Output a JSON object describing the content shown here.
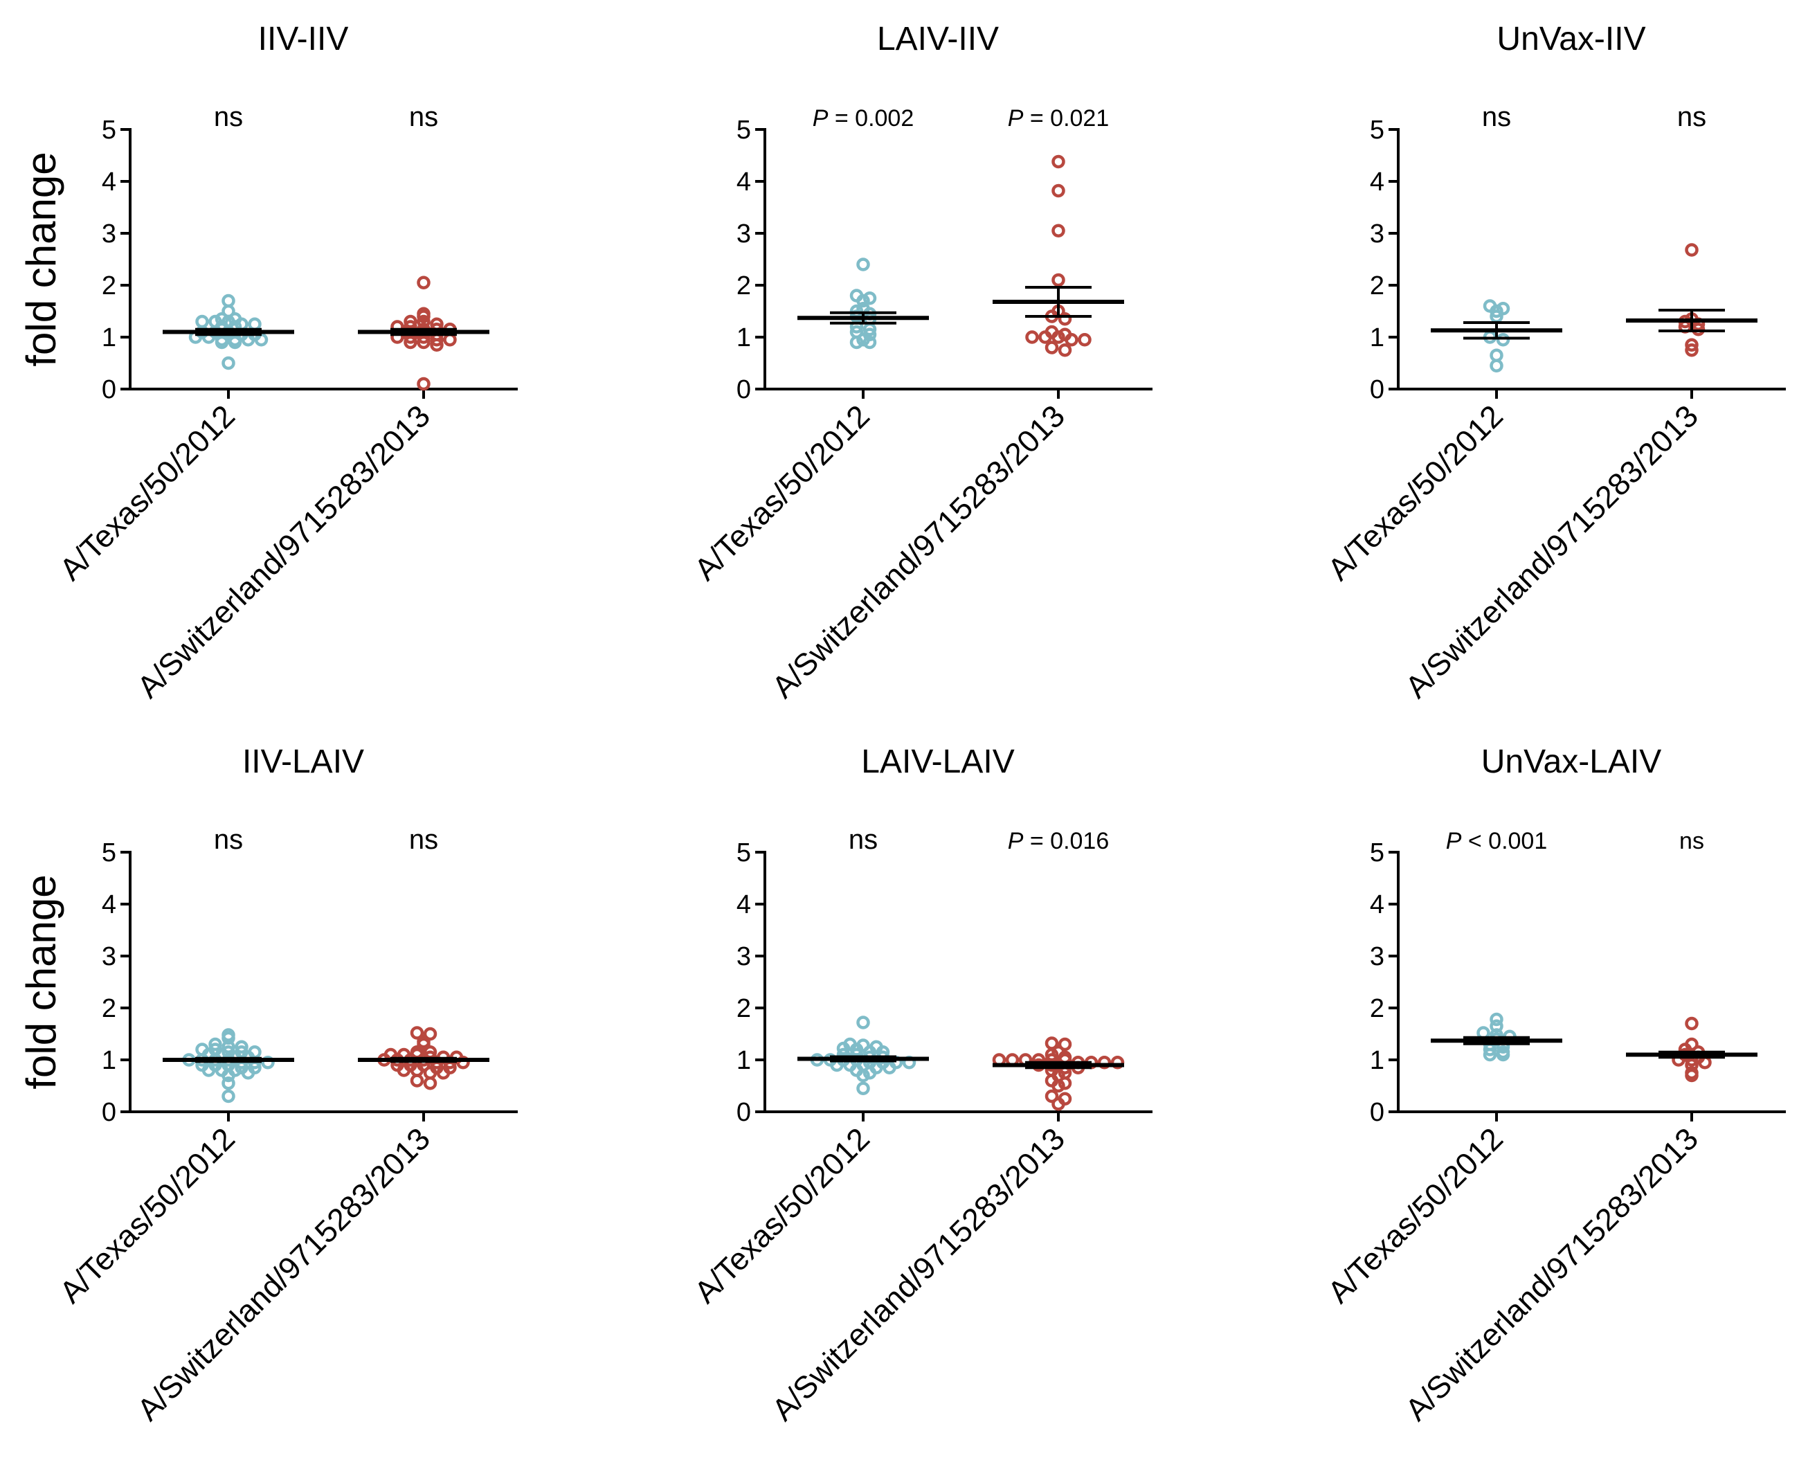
{
  "figure": {
    "ylabel": "fold change",
    "colors": {
      "texas": "#7fbcc8",
      "switzerland": "#b8483f",
      "axis": "#000000",
      "background": "#ffffff"
    }
  },
  "chart_data": [
    {
      "type": "scatter",
      "title": "IIV-IIV",
      "ylabel": "fold change",
      "ylim": [
        0,
        5
      ],
      "yticks": [
        "0",
        "1",
        "2",
        "3",
        "4",
        "5"
      ],
      "grid": false,
      "categories": [
        "A/Texas/50/2012",
        "A/Switzerland/9715283/2013"
      ],
      "annotations": [
        {
          "prefix": "",
          "text": "ns",
          "style": "large"
        },
        {
          "prefix": "",
          "text": "ns",
          "style": "large"
        }
      ],
      "series": [
        {
          "category": "A/Texas/50/2012",
          "color": "#7fbcc8",
          "mean": 1.1,
          "sem": 0.05,
          "values": [
            1.7,
            1.5,
            1.35,
            1.3,
            1.3,
            1.3,
            1.35,
            1.25,
            1.25,
            1.2,
            1.2,
            1.1,
            1.1,
            1.1,
            1.05,
            1.05,
            1.0,
            1.0,
            0.95,
            0.95,
            0.95,
            0.95,
            0.9,
            0.9,
            0.5
          ]
        },
        {
          "category": "A/Switzerland/9715283/2013",
          "color": "#b8483f",
          "mean": 1.1,
          "sem": 0.05,
          "values": [
            2.05,
            1.45,
            1.4,
            1.3,
            1.3,
            1.25,
            1.2,
            1.2,
            1.15,
            1.15,
            1.15,
            1.1,
            1.1,
            1.05,
            1.0,
            1.0,
            1.0,
            0.95,
            0.95,
            0.9,
            0.9,
            0.85,
            0.1
          ]
        }
      ]
    },
    {
      "type": "scatter",
      "title": "LAIV-IIV",
      "ylabel": "",
      "ylim": [
        0,
        5
      ],
      "yticks": [
        "0",
        "1",
        "2",
        "3",
        "4",
        "5"
      ],
      "grid": false,
      "categories": [
        "A/Texas/50/2012",
        "A/Switzerland/9715283/2013"
      ],
      "annotations": [
        {
          "prefix": "P",
          "text": " = 0.002",
          "style": "small"
        },
        {
          "prefix": "P",
          "text": " = 0.021",
          "style": "small"
        }
      ],
      "series": [
        {
          "category": "A/Texas/50/2012",
          "color": "#7fbcc8",
          "mean": 1.37,
          "sem": 0.1,
          "values": [
            2.4,
            1.8,
            1.75,
            1.7,
            1.55,
            1.5,
            1.45,
            1.4,
            1.35,
            1.2,
            1.15,
            1.1,
            1.05,
            0.95,
            0.9,
            0.9
          ]
        },
        {
          "category": "A/Switzerland/9715283/2013",
          "color": "#b8483f",
          "mean": 1.68,
          "sem": 0.28,
          "values": [
            4.38,
            3.82,
            3.05,
            2.1,
            1.5,
            1.4,
            1.35,
            1.1,
            1.05,
            1.0,
            1.0,
            1.0,
            0.95,
            0.95,
            0.8,
            0.75
          ]
        }
      ]
    },
    {
      "type": "scatter",
      "title": "UnVax-IIV",
      "ylabel": "",
      "ylim": [
        0,
        5
      ],
      "yticks": [
        "0",
        "1",
        "2",
        "3",
        "4",
        "5"
      ],
      "grid": false,
      "categories": [
        "A/Texas/50/2012",
        "A/Switzerland/9715283/2013"
      ],
      "annotations": [
        {
          "prefix": "",
          "text": "ns",
          "style": "large"
        },
        {
          "prefix": "",
          "text": "ns",
          "style": "large"
        }
      ],
      "series": [
        {
          "category": "A/Texas/50/2012",
          "color": "#7fbcc8",
          "mean": 1.13,
          "sem": 0.15,
          "values": [
            1.6,
            1.55,
            1.5,
            1.4,
            1.0,
            0.95,
            0.65,
            0.45
          ]
        },
        {
          "category": "A/Switzerland/9715283/2013",
          "color": "#b8483f",
          "mean": 1.32,
          "sem": 0.2,
          "values": [
            2.68,
            1.35,
            1.3,
            1.25,
            1.2,
            1.15,
            0.85,
            0.75
          ]
        }
      ]
    },
    {
      "type": "scatter",
      "title": "IIV-LAIV",
      "ylabel": "fold change",
      "ylim": [
        0,
        5
      ],
      "yticks": [
        "0",
        "1",
        "2",
        "3",
        "4",
        "5"
      ],
      "grid": false,
      "categories": [
        "A/Texas/50/2012",
        "A/Switzerland/9715283/2013"
      ],
      "annotations": [
        {
          "prefix": "",
          "text": "ns",
          "style": "large"
        },
        {
          "prefix": "",
          "text": "ns",
          "style": "large"
        }
      ],
      "series": [
        {
          "category": "A/Texas/50/2012",
          "color": "#7fbcc8",
          "mean": 1.0,
          "sem": 0.03,
          "values": [
            1.48,
            1.42,
            1.3,
            1.25,
            1.25,
            1.2,
            1.2,
            1.15,
            1.15,
            1.15,
            1.1,
            1.1,
            1.05,
            1.05,
            1.0,
            1.0,
            1.0,
            1.0,
            0.95,
            0.95,
            0.95,
            0.9,
            0.9,
            0.9,
            0.85,
            0.85,
            0.8,
            0.8,
            0.8,
            0.75,
            0.7,
            0.55,
            0.3
          ]
        },
        {
          "category": "A/Switzerland/9715283/2013",
          "color": "#b8483f",
          "mean": 1.0,
          "sem": 0.03,
          "values": [
            1.52,
            1.5,
            1.35,
            1.3,
            1.15,
            1.15,
            1.1,
            1.1,
            1.1,
            1.05,
            1.05,
            1.05,
            1.0,
            1.0,
            1.0,
            1.0,
            0.95,
            0.95,
            0.95,
            0.9,
            0.9,
            0.9,
            0.85,
            0.85,
            0.8,
            0.8,
            0.75,
            0.75,
            0.6,
            0.55
          ]
        }
      ]
    },
    {
      "type": "scatter",
      "title": "LAIV-LAIV",
      "ylabel": "",
      "ylim": [
        0,
        5
      ],
      "yticks": [
        "0",
        "1",
        "2",
        "3",
        "4",
        "5"
      ],
      "grid": false,
      "categories": [
        "A/Texas/50/2012",
        "A/Switzerland/9715283/2013"
      ],
      "annotations": [
        {
          "prefix": "",
          "text": "ns",
          "style": "large"
        },
        {
          "prefix": "P",
          "text": " = 0.016",
          "style": "small"
        }
      ],
      "series": [
        {
          "category": "A/Texas/50/2012",
          "color": "#7fbcc8",
          "mean": 1.02,
          "sem": 0.04,
          "values": [
            1.72,
            1.3,
            1.28,
            1.25,
            1.22,
            1.2,
            1.15,
            1.15,
            1.1,
            1.1,
            1.05,
            1.05,
            1.0,
            1.0,
            1.0,
            1.0,
            0.95,
            0.95,
            0.95,
            0.95,
            0.9,
            0.9,
            0.9,
            0.85,
            0.85,
            0.8,
            0.75,
            0.7,
            0.45
          ]
        },
        {
          "category": "A/Switzerland/9715283/2013",
          "color": "#b8483f",
          "mean": 0.9,
          "sem": 0.05,
          "values": [
            1.32,
            1.3,
            1.15,
            1.1,
            1.05,
            1.0,
            1.0,
            1.0,
            1.0,
            1.0,
            1.0,
            0.95,
            0.95,
            0.95,
            0.95,
            0.9,
            0.9,
            0.85,
            0.85,
            0.8,
            0.75,
            0.7,
            0.6,
            0.55,
            0.5,
            0.3,
            0.25,
            0.15
          ]
        }
      ]
    },
    {
      "type": "scatter",
      "title": "UnVax-LAIV",
      "ylabel": "",
      "ylim": [
        0,
        5
      ],
      "yticks": [
        "0",
        "1",
        "2",
        "3",
        "4",
        "5"
      ],
      "grid": false,
      "categories": [
        "A/Texas/50/2012",
        "A/Switzerland/9715283/2013"
      ],
      "annotations": [
        {
          "prefix": "P",
          "text": " < 0.001",
          "style": "small"
        },
        {
          "prefix": "",
          "text": "ns",
          "style": "small"
        }
      ],
      "series": [
        {
          "category": "A/Texas/50/2012",
          "color": "#7fbcc8",
          "mean": 1.37,
          "sem": 0.06,
          "values": [
            1.78,
            1.65,
            1.52,
            1.48,
            1.45,
            1.4,
            1.3,
            1.25,
            1.2,
            1.15,
            1.1,
            1.1
          ]
        },
        {
          "category": "A/Switzerland/9715283/2013",
          "color": "#b8483f",
          "mean": 1.1,
          "sem": 0.05,
          "values": [
            1.7,
            1.3,
            1.2,
            1.15,
            1.1,
            1.05,
            1.0,
            1.0,
            0.95,
            0.9,
            0.75,
            0.7
          ]
        }
      ]
    }
  ]
}
